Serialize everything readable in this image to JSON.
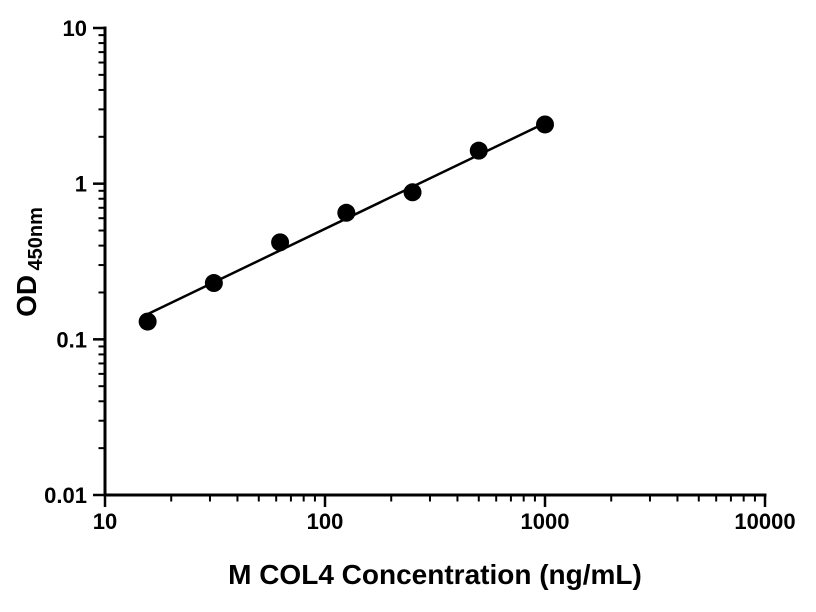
{
  "chart_data": {
    "type": "scatter",
    "title": "",
    "xlabel": "M COL4 Concentration (ng/mL)",
    "ylabel": "OD450nm",
    "ylabel_main": "OD",
    "ylabel_sub": "450nm",
    "x_scale": "log",
    "y_scale": "log",
    "xlim": [
      10,
      10000
    ],
    "ylim": [
      0.01,
      10
    ],
    "x_ticks": [
      10,
      100,
      1000,
      10000
    ],
    "x_tick_labels": [
      "10",
      "100",
      "1000",
      "10000"
    ],
    "y_ticks": [
      0.01,
      0.1,
      1,
      10
    ],
    "y_tick_labels": [
      "0.01",
      "0.1",
      "1",
      "10"
    ],
    "grid": false,
    "legend": false,
    "axis_color": "#000000",
    "marker_color": "#000000",
    "line_color": "#000000",
    "points": {
      "x": [
        15.625,
        31.25,
        62.5,
        125,
        250,
        500,
        1000
      ],
      "y": [
        0.13,
        0.23,
        0.42,
        0.65,
        0.88,
        1.63,
        2.4
      ]
    },
    "fit_line": {
      "x": [
        14.8,
        1000
      ],
      "y": [
        0.14,
        2.45
      ]
    }
  }
}
